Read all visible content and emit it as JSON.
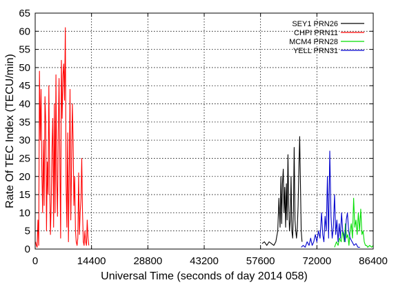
{
  "chart_data": {
    "type": "line",
    "title": "",
    "xlabel": "Universal Time (seconds of day 2014 058)",
    "ylabel": "Rate Of TEC Index (TECU/min)",
    "xlim": [
      0,
      86400
    ],
    "ylim": [
      0,
      65
    ],
    "xticks": [
      0,
      14400,
      28800,
      43200,
      57600,
      72000,
      86400
    ],
    "yticks": [
      0,
      5,
      10,
      15,
      20,
      25,
      30,
      35,
      40,
      45,
      50,
      55,
      60,
      65
    ],
    "grid": true,
    "legend_position": "top-right",
    "series": [
      {
        "name": "SEY1 PRN26",
        "color": "#000000",
        "x": [
          58000,
          58600,
          59200,
          59800,
          60400,
          61000,
          61500,
          62000,
          62300,
          62600,
          62800,
          63000,
          63200,
          63400,
          63600,
          63800,
          64000,
          64200,
          64400,
          64600,
          64800,
          65000,
          65200,
          65400,
          65600,
          65800,
          66000,
          66200,
          66400,
          66600,
          66800,
          67000,
          67200,
          67400,
          67600,
          67800,
          68000,
          68200
        ],
        "values": [
          1.5,
          2,
          1,
          2,
          1.5,
          1,
          2,
          5,
          14,
          6,
          20,
          7,
          18,
          22,
          10,
          17,
          6,
          18,
          8,
          26,
          12,
          5,
          8,
          20,
          5,
          3,
          10,
          28,
          8,
          5,
          3,
          6,
          12,
          22,
          31,
          18,
          5,
          2
        ]
      },
      {
        "name": "CHPI PRN11",
        "color": "#ff0000",
        "x": [
          100,
          300,
          500,
          700,
          900,
          1100,
          1300,
          1500,
          1700,
          1900,
          2100,
          2300,
          2500,
          2700,
          2900,
          3100,
          3300,
          3500,
          3700,
          3900,
          4100,
          4300,
          4500,
          4700,
          4900,
          5100,
          5300,
          5500,
          5700,
          5900,
          6100,
          6300,
          6500,
          6700,
          6900,
          7100,
          7300,
          7500,
          7700,
          7900,
          8100,
          8300,
          8500,
          8700,
          8900,
          9100,
          9300,
          9500,
          9700,
          9900,
          10100,
          10300,
          10500,
          10700,
          10900,
          11100,
          11300,
          11500,
          11700,
          11900,
          12100,
          12300,
          12500,
          12700,
          12900,
          13100,
          13300,
          13500,
          13700
        ],
        "values": [
          2,
          1,
          0.5,
          8,
          1,
          49,
          30,
          44,
          22,
          10,
          30,
          12,
          42,
          35,
          5,
          24,
          15,
          45,
          20,
          4,
          13,
          28,
          36,
          6,
          40,
          10,
          48,
          20,
          9,
          33,
          47,
          25,
          3,
          52,
          36,
          48,
          51,
          41,
          61,
          18,
          6,
          32,
          2,
          20,
          44,
          8,
          22,
          40,
          30,
          12,
          20,
          5,
          2,
          1,
          3,
          21,
          4,
          10,
          14,
          25,
          10,
          2,
          1,
          5,
          2,
          1,
          8,
          3,
          1
        ]
      },
      {
        "name": "MCM4 PRN28",
        "color": "#00dd00",
        "x": [
          76500,
          77000,
          77400,
          77800,
          78200,
          78600,
          79000,
          79300,
          79600,
          79900,
          80200,
          80500,
          80800,
          81100,
          81400,
          81700,
          82000,
          82300,
          82600,
          82900,
          83200,
          83500,
          83800,
          84100,
          84400,
          84700,
          85000,
          85500,
          86000,
          86400
        ],
        "values": [
          0.5,
          2,
          1,
          3,
          2,
          5,
          2,
          7,
          3,
          4,
          1,
          5,
          7,
          3,
          14,
          6,
          8,
          4,
          10,
          5,
          11,
          4,
          5,
          2,
          1,
          1,
          0.5,
          1,
          0.5,
          1
        ]
      },
      {
        "name": "YELL PRN31",
        "color": "#0000cc",
        "x": [
          68000,
          68500,
          69000,
          69500,
          70000,
          70400,
          70800,
          71200,
          71600,
          72000,
          72400,
          72800,
          73200,
          73500,
          73800,
          74100,
          74400,
          74700,
          75000,
          75300,
          75600,
          75900,
          76200,
          76500,
          76800,
          77100,
          77400,
          77700,
          78000,
          78300,
          78600,
          78900,
          79200,
          79500,
          79800,
          80100,
          80500,
          81000,
          81500,
          82000,
          82500,
          83000
        ],
        "values": [
          0.5,
          1,
          0.5,
          2,
          1,
          3,
          1,
          2,
          4,
          2,
          5,
          3,
          10,
          4,
          2,
          9,
          5,
          20,
          3,
          27,
          9,
          3,
          6,
          15,
          4,
          8,
          2,
          7,
          3,
          10,
          5,
          4,
          2,
          8,
          10,
          5,
          3,
          2,
          1,
          1.5,
          0.5,
          0.5
        ]
      }
    ]
  }
}
